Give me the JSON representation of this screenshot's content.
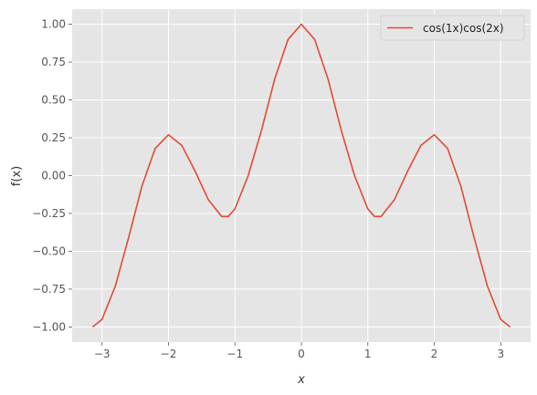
{
  "chart_data": {
    "type": "line",
    "title": "",
    "xlabel": "x",
    "ylabel": "f(x)",
    "xlim": [
      -3.45,
      3.45
    ],
    "ylim": [
      -1.1,
      1.1
    ],
    "x_ticks": [
      -3,
      -2,
      -1,
      0,
      1,
      2,
      3
    ],
    "x_tick_labels": [
      "−3",
      "−2",
      "−1",
      "0",
      "1",
      "2",
      "3"
    ],
    "y_ticks": [
      -1.0,
      -0.75,
      -0.5,
      -0.25,
      0.0,
      0.25,
      0.5,
      0.75,
      1.0
    ],
    "y_tick_labels": [
      "−1.00",
      "−0.75",
      "−0.50",
      "−0.25",
      "0.00",
      "0.25",
      "0.50",
      "0.75",
      "1.00"
    ],
    "grid": true,
    "legend_position": "top-right",
    "series": [
      {
        "name": "cos(1x)cos(2x)",
        "color": "#E24A33",
        "x": [
          -3.1416,
          -3.0,
          -2.8,
          -2.6,
          -2.4,
          -2.2,
          -2.0,
          -1.8,
          -1.6,
          -1.4,
          -1.2,
          -1.1,
          -1.0,
          -0.8,
          -0.6,
          -0.4,
          -0.2,
          0.0,
          0.2,
          0.4,
          0.6,
          0.8,
          1.0,
          1.1,
          1.2,
          1.4,
          1.6,
          1.8,
          2.0,
          2.2,
          2.4,
          2.6,
          2.8,
          3.0,
          3.1416
        ],
        "y": [
          -1.0,
          -0.95,
          -0.73,
          -0.41,
          -0.07,
          0.18,
          0.27,
          0.2,
          0.03,
          -0.16,
          -0.27,
          -0.27,
          -0.22,
          0.0,
          0.3,
          0.64,
          0.9,
          1.0,
          0.9,
          0.64,
          0.3,
          0.0,
          -0.22,
          -0.27,
          -0.27,
          -0.16,
          0.03,
          0.2,
          0.27,
          0.18,
          -0.07,
          -0.41,
          -0.73,
          -0.95,
          -1.0
        ]
      }
    ]
  }
}
